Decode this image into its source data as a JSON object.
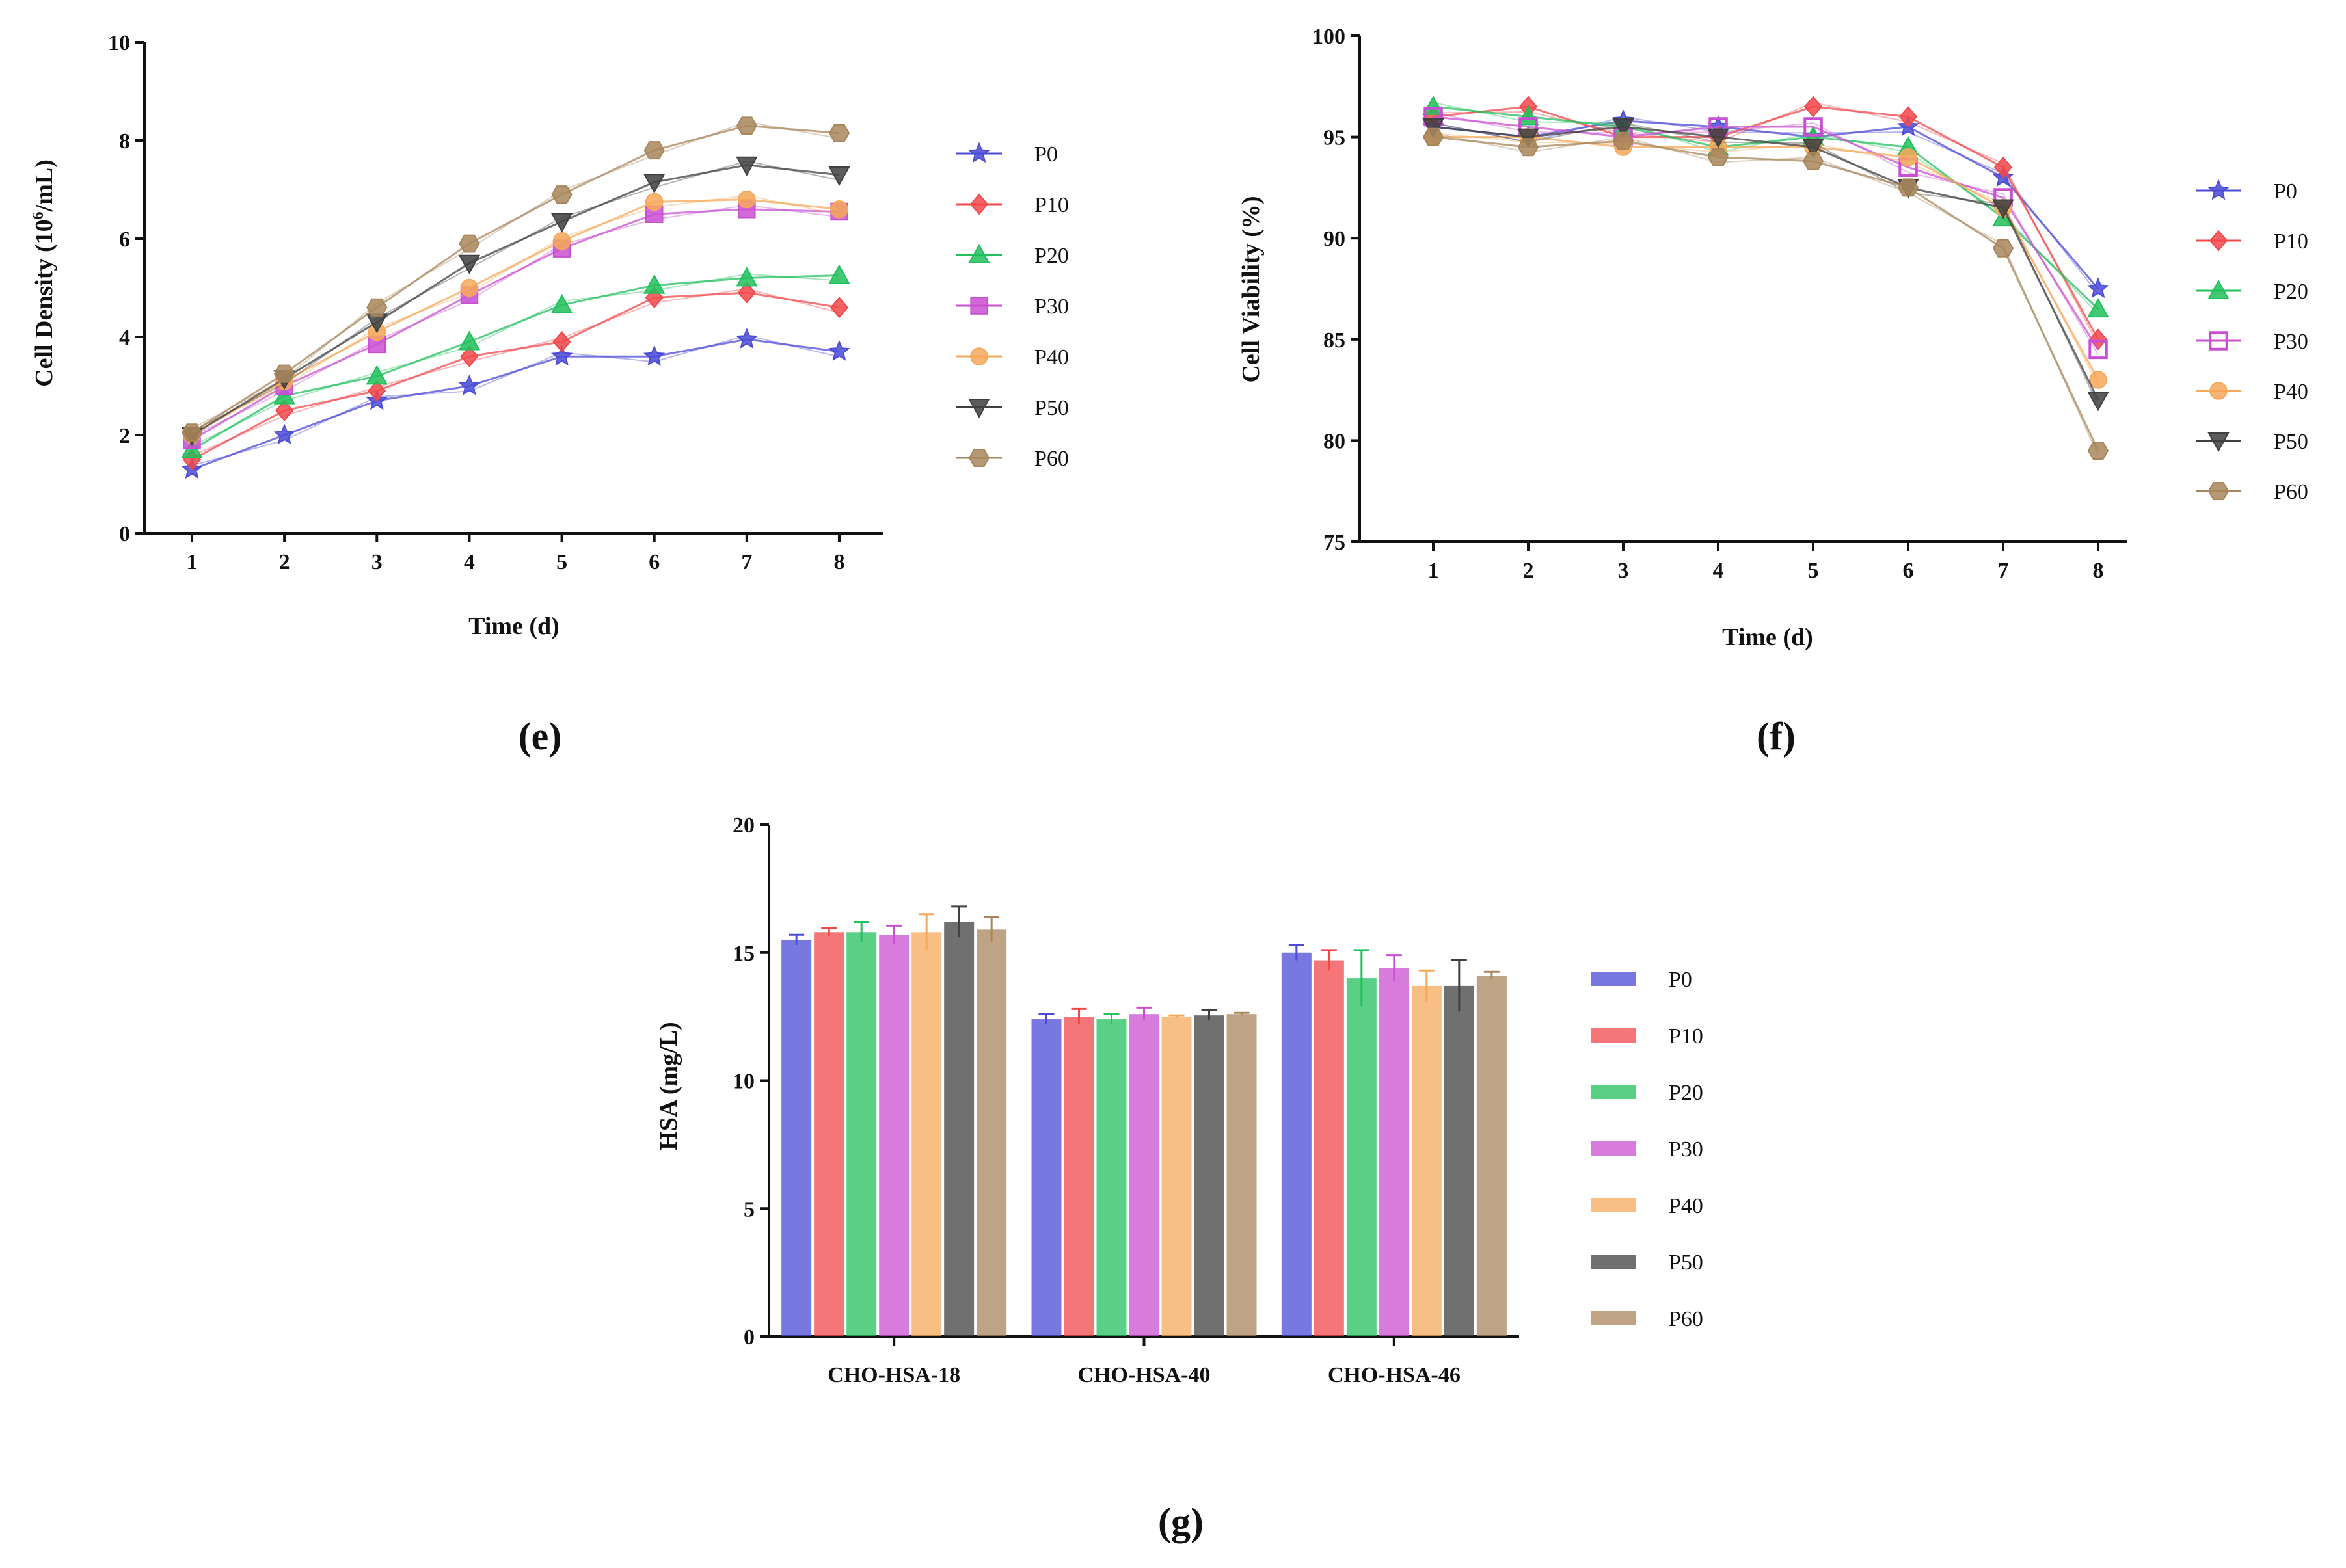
{
  "series_names": [
    "P0",
    "P10",
    "P20",
    "P30",
    "P40",
    "P50",
    "P60"
  ],
  "colors": {
    "P0": "#4b4bd6",
    "P10": "#f2484b",
    "P20": "#22c05c",
    "P30": "#c94fd2",
    "P40": "#f5a85a",
    "P50": "#404040",
    "P60": "#a8865c"
  },
  "markers": {
    "P0": "star",
    "P10": "diamond",
    "P20": "triangle-up",
    "P30": "square",
    "P40": "circle",
    "P50": "triangle-down",
    "P60": "hexagon"
  },
  "chart_data": [
    {
      "panel": "(e)",
      "type": "line",
      "title": "",
      "xlabel": "Time (d)",
      "ylabel_prefix": "Cell Density (10",
      "ylabel_sup": "6",
      "ylabel_suffix": "/mL)",
      "x": [
        1,
        2,
        3,
        4,
        5,
        6,
        7,
        8
      ],
      "xticks": [
        "1",
        "2",
        "3",
        "4",
        "5",
        "6",
        "7",
        "8"
      ],
      "ylim": [
        0,
        10
      ],
      "yticks": [
        "0",
        "2",
        "4",
        "6",
        "8",
        "10"
      ],
      "legend_position": "right",
      "series": [
        {
          "name": "P0",
          "values": [
            1.3,
            2.0,
            2.7,
            3.0,
            3.6,
            3.6,
            3.95,
            3.7
          ]
        },
        {
          "name": "P10",
          "values": [
            1.5,
            2.5,
            2.9,
            3.6,
            3.9,
            4.8,
            4.9,
            4.6
          ]
        },
        {
          "name": "P20",
          "values": [
            1.7,
            2.8,
            3.2,
            3.9,
            4.65,
            5.05,
            5.2,
            5.25
          ]
        },
        {
          "name": "P30",
          "values": [
            1.9,
            3.0,
            3.85,
            4.85,
            5.8,
            6.5,
            6.6,
            6.55
          ]
        },
        {
          "name": "P40",
          "values": [
            2.0,
            3.1,
            4.1,
            5.0,
            5.95,
            6.75,
            6.8,
            6.6
          ]
        },
        {
          "name": "P50",
          "values": [
            2.0,
            3.15,
            4.3,
            5.5,
            6.35,
            7.15,
            7.5,
            7.3
          ]
        },
        {
          "name": "P60",
          "values": [
            2.05,
            3.25,
            4.6,
            5.9,
            6.9,
            7.8,
            8.3,
            8.15
          ]
        }
      ]
    },
    {
      "panel": "(f)",
      "type": "line",
      "title": "",
      "xlabel": "Time (d)",
      "ylabel": "Cell Viability (%)",
      "x": [
        1,
        2,
        3,
        4,
        5,
        6,
        7,
        8
      ],
      "xticks": [
        "1",
        "2",
        "3",
        "4",
        "5",
        "6",
        "7",
        "8"
      ],
      "ylim": [
        75,
        100
      ],
      "yticks": [
        "75",
        "80",
        "85",
        "90",
        "95",
        "100"
      ],
      "legend_position": "right",
      "series": [
        {
          "name": "P0",
          "values": [
            95.5,
            95.0,
            95.8,
            95.5,
            95.0,
            95.5,
            93.0,
            87.5
          ]
        },
        {
          "name": "P10",
          "values": [
            96.0,
            96.5,
            95.0,
            95.0,
            96.5,
            96.0,
            93.5,
            85.0
          ]
        },
        {
          "name": "P20",
          "values": [
            96.5,
            96.0,
            95.5,
            94.5,
            95.0,
            94.5,
            91.0,
            86.5
          ]
        },
        {
          "name": "P30",
          "values": [
            96.0,
            95.5,
            95.0,
            95.5,
            95.5,
            93.5,
            92.0,
            84.5
          ]
        },
        {
          "name": "P40",
          "values": [
            95.0,
            95.0,
            94.5,
            94.5,
            94.5,
            94.0,
            91.5,
            83.0
          ]
        },
        {
          "name": "P50",
          "values": [
            95.5,
            95.0,
            95.5,
            95.0,
            94.5,
            92.5,
            91.5,
            82.0
          ]
        },
        {
          "name": "P60",
          "values": [
            95.0,
            94.5,
            94.8,
            94.0,
            93.8,
            92.5,
            89.5,
            79.5
          ]
        }
      ]
    },
    {
      "panel": "(g)",
      "type": "bar",
      "title": "",
      "xlabel": "",
      "ylabel": "HSA (mg/L)",
      "categories": [
        "CHO-HSA-18",
        "CHO-HSA-40",
        "CHO-HSA-46"
      ],
      "ylim": [
        0,
        20
      ],
      "yticks": [
        "0",
        "5",
        "10",
        "15",
        "20"
      ],
      "legend_position": "right",
      "series": [
        {
          "name": "P0",
          "values": [
            15.5,
            12.4,
            15.0
          ],
          "errors": [
            0.2,
            0.2,
            0.3
          ]
        },
        {
          "name": "P10",
          "values": [
            15.8,
            12.5,
            14.7
          ],
          "errors": [
            0.15,
            0.3,
            0.4
          ]
        },
        {
          "name": "P20",
          "values": [
            15.8,
            12.4,
            14.0
          ],
          "errors": [
            0.4,
            0.2,
            1.1
          ]
        },
        {
          "name": "P30",
          "values": [
            15.7,
            12.6,
            14.4
          ],
          "errors": [
            0.35,
            0.25,
            0.5
          ]
        },
        {
          "name": "P40",
          "values": [
            15.8,
            12.5,
            13.7
          ],
          "errors": [
            0.7,
            0.05,
            0.6
          ]
        },
        {
          "name": "P50",
          "values": [
            16.2,
            12.55,
            13.7
          ],
          "errors": [
            0.6,
            0.2,
            1.0
          ]
        },
        {
          "name": "P60",
          "values": [
            15.9,
            12.6,
            14.1
          ],
          "errors": [
            0.5,
            0.05,
            0.15
          ]
        }
      ]
    }
  ]
}
